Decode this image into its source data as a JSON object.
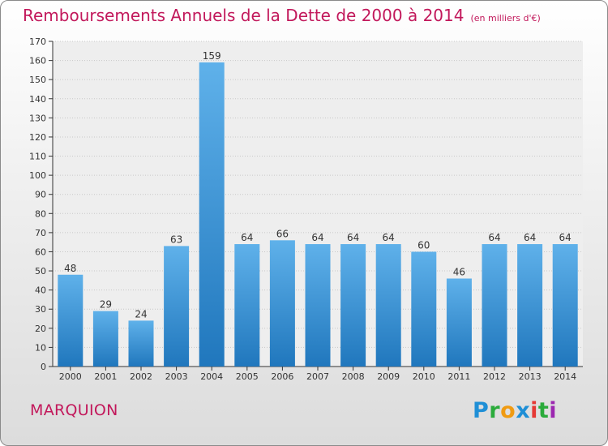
{
  "chart_data": {
    "type": "bar",
    "title": "Remboursements Annuels de la Dette de 2000 à 2014",
    "subtitle": "(en milliers d'€)",
    "categories": [
      "2000",
      "2001",
      "2002",
      "2003",
      "2004",
      "2005",
      "2006",
      "2007",
      "2008",
      "2009",
      "2010",
      "2011",
      "2012",
      "2013",
      "2014"
    ],
    "values": [
      48,
      29,
      24,
      63,
      159,
      64,
      66,
      64,
      64,
      64,
      60,
      46,
      64,
      64,
      64
    ],
    "ylim": [
      0,
      170
    ],
    "yticks": [
      0,
      10,
      20,
      30,
      40,
      50,
      60,
      70,
      80,
      90,
      100,
      110,
      120,
      130,
      140,
      150,
      160,
      170
    ],
    "grid": true,
    "bar_color": "#3a9ade",
    "xlabel": "",
    "ylabel": ""
  },
  "commune": "MARQUION",
  "logo": {
    "letters": [
      "P",
      "r",
      "o",
      "x",
      "i",
      "t",
      "i"
    ]
  },
  "colors": {
    "title": "#c2185b",
    "grid": "#c8c8c8",
    "axis": "#333333"
  }
}
